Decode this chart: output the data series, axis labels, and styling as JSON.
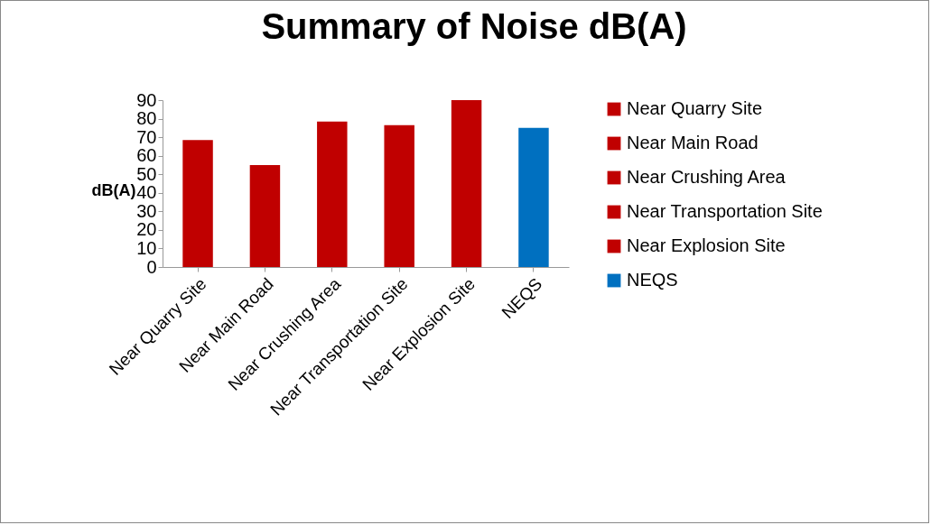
{
  "chart_data": {
    "type": "bar",
    "title": "Summary of Noise dB(A)",
    "ylabel": "dB(A)",
    "categories": [
      "Near Quarry Site",
      "Near Main Road",
      "Near Crushing Area",
      "Near Transportation Site",
      "Near Explosion Site",
      "NEQS"
    ],
    "series": [
      {
        "name": "Near Quarry Site",
        "color": "#c00000",
        "values": [
          68.5,
          null,
          null,
          null,
          null,
          null
        ]
      },
      {
        "name": "Near Main Road",
        "color": "#c00000",
        "values": [
          null,
          55,
          null,
          null,
          null,
          null
        ]
      },
      {
        "name": "Near Crushing Area",
        "color": "#c00000",
        "values": [
          null,
          null,
          78.5,
          null,
          null,
          null
        ]
      },
      {
        "name": "Near Transportation Site",
        "color": "#c00000",
        "values": [
          null,
          null,
          null,
          76.5,
          null,
          null
        ]
      },
      {
        "name": "Near Explosion Site",
        "color": "#c00000",
        "values": [
          null,
          null,
          null,
          null,
          90,
          null
        ]
      },
      {
        "name": "NEQS",
        "color": "#0070c0",
        "values": [
          null,
          null,
          null,
          null,
          null,
          75
        ]
      }
    ],
    "ylim": [
      0,
      90
    ],
    "yticks": [
      0,
      10,
      20,
      30,
      40,
      50,
      60,
      70,
      80,
      90
    ],
    "legend": "right"
  }
}
